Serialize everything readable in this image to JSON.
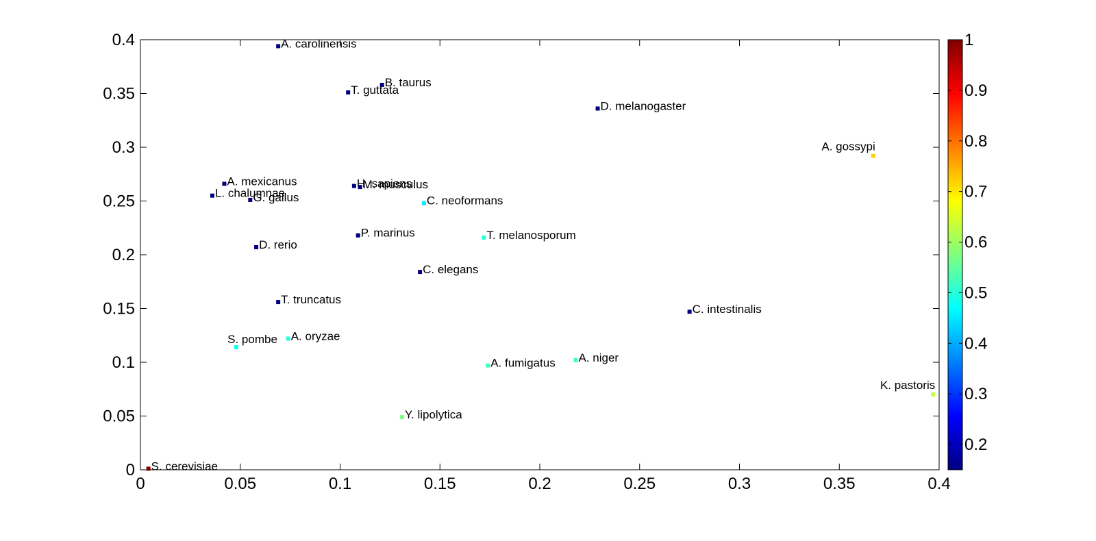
{
  "chart_data": {
    "type": "scatter",
    "title": "",
    "xlabel": "",
    "ylabel": "",
    "xlim": [
      0,
      0.4
    ],
    "ylim": [
      0,
      0.4
    ],
    "grid": false,
    "x_ticks": [
      "0",
      "0.05",
      "0.1",
      "0.15",
      "0.2",
      "0.25",
      "0.3",
      "0.35",
      "0.4"
    ],
    "y_ticks": [
      "0",
      "0.05",
      "0.1",
      "0.15",
      "0.2",
      "0.25",
      "0.3",
      "0.35",
      "0.4"
    ],
    "colorbar": {
      "range": [
        0.15,
        1
      ],
      "colormap": "jet",
      "ticks": [
        "0.2",
        "0.3",
        "0.4",
        "0.5",
        "0.6",
        "0.7",
        "0.8",
        "0.9",
        "1"
      ]
    },
    "points": [
      {
        "label": "A. carolinensis",
        "x": 0.069,
        "y": 0.394,
        "value": 0.15
      },
      {
        "label": "B. taurus",
        "x": 0.121,
        "y": 0.358,
        "value": 0.15
      },
      {
        "label": "T. guttata",
        "x": 0.104,
        "y": 0.351,
        "value": 0.15
      },
      {
        "label": "D. melanogaster",
        "x": 0.229,
        "y": 0.336,
        "value": 0.15
      },
      {
        "label": "A. gossypi",
        "x": 0.367,
        "y": 0.292,
        "value": 0.72
      },
      {
        "label": "A. mexicanus",
        "x": 0.042,
        "y": 0.266,
        "value": 0.15
      },
      {
        "label": "L. chalumnae",
        "x": 0.036,
        "y": 0.255,
        "value": 0.15
      },
      {
        "label": "G. gallus",
        "x": 0.055,
        "y": 0.251,
        "value": 0.15
      },
      {
        "label": "H. sapiens",
        "x": 0.107,
        "y": 0.264,
        "value": 0.15
      },
      {
        "label": "M. musculus",
        "x": 0.11,
        "y": 0.263,
        "value": 0.15
      },
      {
        "label": "C. neoformans",
        "x": 0.142,
        "y": 0.248,
        "value": 0.45
      },
      {
        "label": "P. marinus",
        "x": 0.109,
        "y": 0.218,
        "value": 0.15
      },
      {
        "label": "T. melanosporum",
        "x": 0.172,
        "y": 0.216,
        "value": 0.5
      },
      {
        "label": "D. rerio",
        "x": 0.058,
        "y": 0.207,
        "value": 0.15
      },
      {
        "label": "C. elegans",
        "x": 0.14,
        "y": 0.184,
        "value": 0.15
      },
      {
        "label": "T. truncatus",
        "x": 0.069,
        "y": 0.156,
        "value": 0.15
      },
      {
        "label": "C. intestinalis",
        "x": 0.275,
        "y": 0.147,
        "value": 0.15
      },
      {
        "label": "S. pombe",
        "x": 0.048,
        "y": 0.114,
        "value": 0.48
      },
      {
        "label": "A. oryzae",
        "x": 0.074,
        "y": 0.122,
        "value": 0.5
      },
      {
        "label": "A. fumigatus",
        "x": 0.174,
        "y": 0.097,
        "value": 0.52
      },
      {
        "label": "A. niger",
        "x": 0.218,
        "y": 0.102,
        "value": 0.52
      },
      {
        "label": "K. pastoris",
        "x": 0.397,
        "y": 0.07,
        "value": 0.63
      },
      {
        "label": "Y. lipolytica",
        "x": 0.131,
        "y": 0.049,
        "value": 0.57
      },
      {
        "label": "S. cerevisiae",
        "x": 0.004,
        "y": 0.001,
        "value": 1.0
      }
    ]
  }
}
